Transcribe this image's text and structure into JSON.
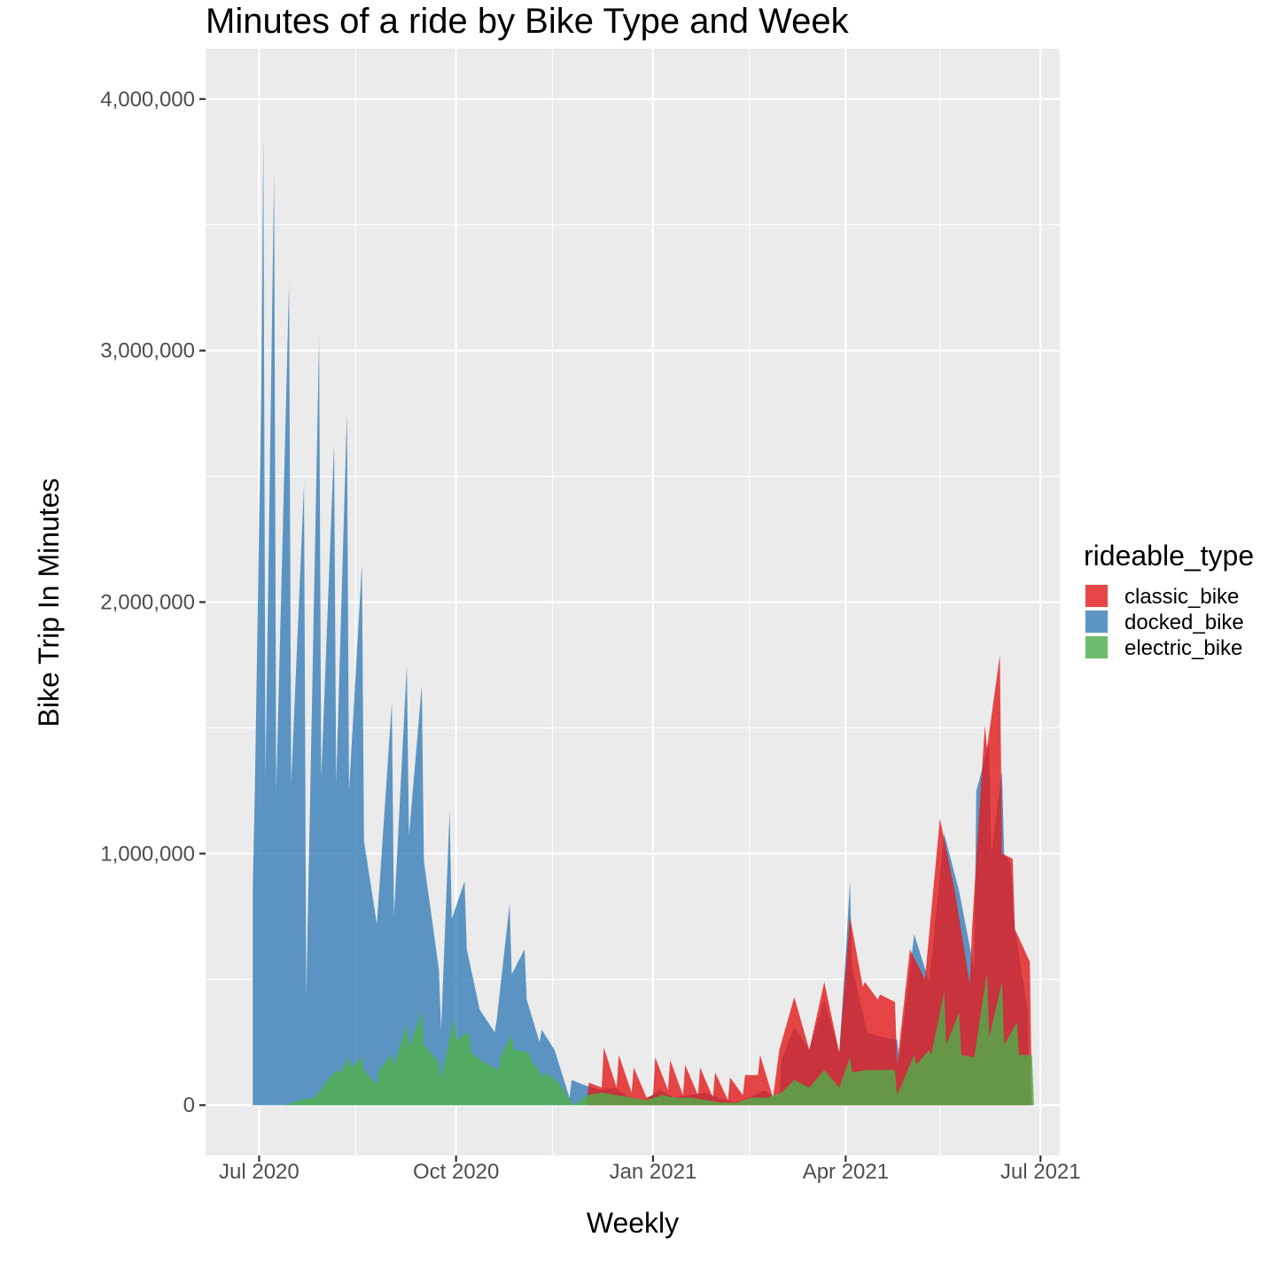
{
  "chart_data": {
    "type": "area",
    "title": "Minutes of a ride by Bike Type and Week",
    "xlabel": "Weekly",
    "ylabel": "Bike Trip In Minutes",
    "x_axis_type": "date",
    "xlim": [
      "2020-06-06",
      "2021-07-10"
    ],
    "ylim": [
      -200000,
      4200000
    ],
    "x_ticks": [
      {
        "date": "2020-07-01",
        "label": "Jul 2020"
      },
      {
        "date": "2020-10-01",
        "label": "Oct 2020"
      },
      {
        "date": "2021-01-01",
        "label": "Jan 2021"
      },
      {
        "date": "2021-04-01",
        "label": "Apr 2021"
      },
      {
        "date": "2021-07-01",
        "label": "Jul 2021"
      }
    ],
    "x_minor_ticks": [
      "2020-08-15",
      "2020-11-15",
      "2021-02-15",
      "2021-05-15"
    ],
    "y_ticks": [
      {
        "value": 0,
        "label": "0"
      },
      {
        "value": 1000000,
        "label": "1,000,000"
      },
      {
        "value": 2000000,
        "label": "2,000,000"
      },
      {
        "value": 3000000,
        "label": "3,000,000"
      },
      {
        "value": 4000000,
        "label": "4,000,000"
      }
    ],
    "y_minor_ticks": [
      500000,
      1500000,
      2500000,
      3500000
    ],
    "grid": true,
    "legend": {
      "title": "rideable_type",
      "placement": "right",
      "entries": [
        {
          "name": "classic_bike",
          "color": "#E41A1C"
        },
        {
          "name": "docked_bike",
          "color": "#377EB8"
        },
        {
          "name": "electric_bike",
          "color": "#4DAF4A"
        }
      ]
    },
    "fill_opacity": 0.8,
    "series": [
      {
        "name": "docked_bike",
        "color": "#377EB8",
        "points": [
          [
            "2020-06-28",
            850000
          ],
          [
            "2020-06-29",
            1250000
          ],
          [
            "2020-07-01",
            2300000
          ],
          [
            "2020-07-02",
            2800000
          ],
          [
            "2020-07-03",
            3850000
          ],
          [
            "2020-07-04",
            1300000
          ],
          [
            "2020-07-08",
            3700000
          ],
          [
            "2020-07-09",
            1250000
          ],
          [
            "2020-07-15",
            3270000
          ],
          [
            "2020-07-16",
            1280000
          ],
          [
            "2020-07-22",
            2470000
          ],
          [
            "2020-07-23",
            430000
          ],
          [
            "2020-07-29",
            3050000
          ],
          [
            "2020-07-30",
            1300000
          ],
          [
            "2020-08-05",
            2630000
          ],
          [
            "2020-08-06",
            1280000
          ],
          [
            "2020-08-11",
            2750000
          ],
          [
            "2020-08-12",
            1250000
          ],
          [
            "2020-08-18",
            2150000
          ],
          [
            "2020-08-19",
            1050000
          ],
          [
            "2020-08-25",
            720000
          ],
          [
            "2020-09-01",
            1600000
          ],
          [
            "2020-09-02",
            750000
          ],
          [
            "2020-09-08",
            1750000
          ],
          [
            "2020-09-09",
            1070000
          ],
          [
            "2020-09-15",
            1670000
          ],
          [
            "2020-09-16",
            970000
          ],
          [
            "2020-09-23",
            540000
          ],
          [
            "2020-09-24",
            300000
          ],
          [
            "2020-09-28",
            1170000
          ],
          [
            "2020-09-29",
            740000
          ],
          [
            "2020-10-05",
            890000
          ],
          [
            "2020-10-06",
            620000
          ],
          [
            "2020-10-12",
            380000
          ],
          [
            "2020-10-19",
            290000
          ],
          [
            "2020-10-20",
            340000
          ],
          [
            "2020-10-26",
            800000
          ],
          [
            "2020-10-27",
            520000
          ],
          [
            "2020-11-02",
            620000
          ],
          [
            "2020-11-03",
            420000
          ],
          [
            "2020-11-09",
            250000
          ],
          [
            "2020-11-10",
            300000
          ],
          [
            "2020-11-16",
            220000
          ],
          [
            "2020-11-23",
            30000
          ],
          [
            "2020-11-24",
            100000
          ],
          [
            "2020-11-30",
            80000
          ],
          [
            "2020-12-07",
            60000
          ],
          [
            "2020-12-14",
            70000
          ],
          [
            "2020-12-21",
            30000
          ],
          [
            "2020-12-28",
            20000
          ],
          [
            "2021-01-04",
            60000
          ],
          [
            "2021-01-11",
            30000
          ],
          [
            "2021-01-18",
            40000
          ],
          [
            "2021-01-25",
            50000
          ],
          [
            "2021-02-01",
            30000
          ],
          [
            "2021-02-08",
            10000
          ],
          [
            "2021-02-15",
            30000
          ],
          [
            "2021-02-22",
            60000
          ],
          [
            "2021-03-01",
            20000
          ],
          [
            "2021-03-02",
            180000
          ],
          [
            "2021-03-08",
            310000
          ],
          [
            "2021-03-15",
            220000
          ],
          [
            "2021-03-22",
            420000
          ],
          [
            "2021-03-29",
            210000
          ],
          [
            "2021-04-01",
            600000
          ],
          [
            "2021-04-03",
            890000
          ],
          [
            "2021-04-04",
            550000
          ],
          [
            "2021-04-11",
            290000
          ],
          [
            "2021-04-18",
            270000
          ],
          [
            "2021-04-25",
            260000
          ],
          [
            "2021-04-26",
            180000
          ],
          [
            "2021-05-03",
            680000
          ],
          [
            "2021-05-10",
            490000
          ],
          [
            "2021-05-17",
            1080000
          ],
          [
            "2021-05-24",
            850000
          ],
          [
            "2021-05-31",
            540000
          ],
          [
            "2021-06-01",
            1250000
          ],
          [
            "2021-06-07",
            1440000
          ],
          [
            "2021-06-08",
            1000000
          ],
          [
            "2021-06-13",
            1330000
          ],
          [
            "2021-06-14",
            1000000
          ],
          [
            "2021-06-17",
            960000
          ],
          [
            "2021-06-19",
            700000
          ],
          [
            "2021-06-25",
            380000
          ],
          [
            "2021-06-26",
            0
          ]
        ]
      },
      {
        "name": "classic_bike",
        "color": "#E41A1C",
        "points": [
          [
            "2020-12-01",
            0
          ],
          [
            "2020-12-02",
            90000
          ],
          [
            "2020-12-08",
            70000
          ],
          [
            "2020-12-09",
            230000
          ],
          [
            "2020-12-15",
            70000
          ],
          [
            "2020-12-16",
            200000
          ],
          [
            "2020-12-22",
            50000
          ],
          [
            "2020-12-23",
            150000
          ],
          [
            "2020-12-29",
            30000
          ],
          [
            "2021-01-01",
            40000
          ],
          [
            "2021-01-02",
            190000
          ],
          [
            "2021-01-08",
            60000
          ],
          [
            "2021-01-09",
            180000
          ],
          [
            "2021-01-15",
            40000
          ],
          [
            "2021-01-16",
            160000
          ],
          [
            "2021-01-22",
            40000
          ],
          [
            "2021-01-23",
            150000
          ],
          [
            "2021-01-29",
            30000
          ],
          [
            "2021-01-30",
            130000
          ],
          [
            "2021-02-05",
            20000
          ],
          [
            "2021-02-06",
            110000
          ],
          [
            "2021-02-12",
            40000
          ],
          [
            "2021-02-13",
            120000
          ],
          [
            "2021-02-19",
            120000
          ],
          [
            "2021-02-20",
            200000
          ],
          [
            "2021-02-26",
            30000
          ],
          [
            "2021-03-01",
            220000
          ],
          [
            "2021-03-08",
            430000
          ],
          [
            "2021-03-15",
            220000
          ],
          [
            "2021-03-22",
            490000
          ],
          [
            "2021-03-29",
            210000
          ],
          [
            "2021-04-03",
            750000
          ],
          [
            "2021-04-09",
            470000
          ],
          [
            "2021-04-10",
            490000
          ],
          [
            "2021-04-16",
            420000
          ],
          [
            "2021-04-17",
            440000
          ],
          [
            "2021-04-24",
            410000
          ],
          [
            "2021-04-25",
            160000
          ],
          [
            "2021-05-01",
            620000
          ],
          [
            "2021-05-08",
            500000
          ],
          [
            "2021-05-15",
            1140000
          ],
          [
            "2021-05-22",
            850000
          ],
          [
            "2021-05-29",
            480000
          ],
          [
            "2021-05-30",
            700000
          ],
          [
            "2021-06-05",
            1510000
          ],
          [
            "2021-06-06",
            1420000
          ],
          [
            "2021-06-12",
            1790000
          ],
          [
            "2021-06-13",
            1000000
          ],
          [
            "2021-06-18",
            980000
          ],
          [
            "2021-06-19",
            700000
          ],
          [
            "2021-06-26",
            570000
          ],
          [
            "2021-06-27",
            0
          ]
        ]
      },
      {
        "name": "electric_bike",
        "color": "#4DAF4A",
        "points": [
          [
            "2020-07-13",
            0
          ],
          [
            "2020-07-20",
            20000
          ],
          [
            "2020-07-27",
            30000
          ],
          [
            "2020-08-03",
            110000
          ],
          [
            "2020-08-06",
            140000
          ],
          [
            "2020-08-08",
            130000
          ],
          [
            "2020-08-12",
            190000
          ],
          [
            "2020-08-13",
            150000
          ],
          [
            "2020-08-18",
            190000
          ],
          [
            "2020-08-19",
            140000
          ],
          [
            "2020-08-25",
            80000
          ],
          [
            "2020-08-26",
            140000
          ],
          [
            "2020-09-01",
            200000
          ],
          [
            "2020-09-02",
            160000
          ],
          [
            "2020-09-08",
            320000
          ],
          [
            "2020-09-09",
            230000
          ],
          [
            "2020-09-15",
            370000
          ],
          [
            "2020-09-16",
            240000
          ],
          [
            "2020-09-23",
            170000
          ],
          [
            "2020-09-24",
            100000
          ],
          [
            "2020-09-30",
            350000
          ],
          [
            "2020-10-01",
            260000
          ],
          [
            "2020-10-07",
            290000
          ],
          [
            "2020-10-08",
            210000
          ],
          [
            "2020-10-14",
            170000
          ],
          [
            "2020-10-21",
            140000
          ],
          [
            "2020-10-22",
            200000
          ],
          [
            "2020-10-27",
            280000
          ],
          [
            "2020-10-28",
            220000
          ],
          [
            "2020-11-04",
            210000
          ],
          [
            "2020-11-05",
            180000
          ],
          [
            "2020-11-11",
            110000
          ],
          [
            "2020-11-12",
            130000
          ],
          [
            "2020-11-18",
            90000
          ],
          [
            "2020-11-25",
            0
          ],
          [
            "2020-12-01",
            40000
          ],
          [
            "2020-12-08",
            50000
          ],
          [
            "2020-12-15",
            40000
          ],
          [
            "2020-12-22",
            30000
          ],
          [
            "2020-12-29",
            20000
          ],
          [
            "2021-01-05",
            40000
          ],
          [
            "2021-01-12",
            30000
          ],
          [
            "2021-01-19",
            30000
          ],
          [
            "2021-01-26",
            20000
          ],
          [
            "2021-02-02",
            10000
          ],
          [
            "2021-02-09",
            10000
          ],
          [
            "2021-02-16",
            30000
          ],
          [
            "2021-02-23",
            30000
          ],
          [
            "2021-03-02",
            50000
          ],
          [
            "2021-03-08",
            100000
          ],
          [
            "2021-03-15",
            70000
          ],
          [
            "2021-03-22",
            140000
          ],
          [
            "2021-03-29",
            70000
          ],
          [
            "2021-04-03",
            190000
          ],
          [
            "2021-04-04",
            130000
          ],
          [
            "2021-04-11",
            140000
          ],
          [
            "2021-04-18",
            140000
          ],
          [
            "2021-04-24",
            140000
          ],
          [
            "2021-04-25",
            40000
          ],
          [
            "2021-05-03",
            200000
          ],
          [
            "2021-05-04",
            160000
          ],
          [
            "2021-05-10",
            220000
          ],
          [
            "2021-05-11",
            200000
          ],
          [
            "2021-05-17",
            450000
          ],
          [
            "2021-05-18",
            240000
          ],
          [
            "2021-05-24",
            370000
          ],
          [
            "2021-05-25",
            200000
          ],
          [
            "2021-05-31",
            190000
          ],
          [
            "2021-06-06",
            530000
          ],
          [
            "2021-06-07",
            270000
          ],
          [
            "2021-06-13",
            490000
          ],
          [
            "2021-06-14",
            240000
          ],
          [
            "2021-06-20",
            330000
          ],
          [
            "2021-06-21",
            200000
          ],
          [
            "2021-06-27",
            200000
          ],
          [
            "2021-06-28",
            0
          ]
        ]
      }
    ]
  }
}
